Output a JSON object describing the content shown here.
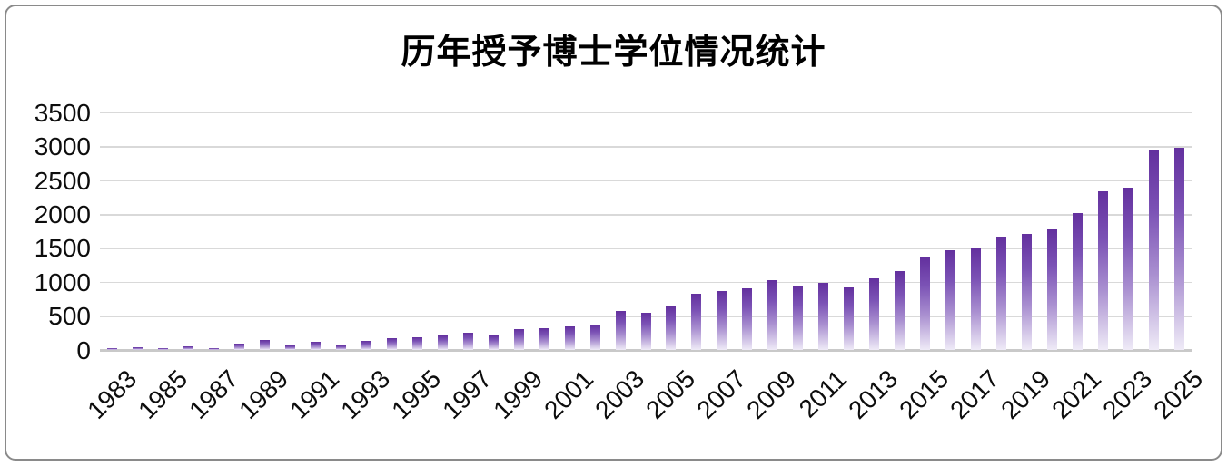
{
  "chart_data": {
    "type": "bar",
    "title": "历年授予博士学位情况统计",
    "xlabel": "",
    "ylabel": "",
    "categories": [
      1983,
      1984,
      1985,
      1986,
      1987,
      1988,
      1989,
      1990,
      1991,
      1992,
      1993,
      1994,
      1995,
      1996,
      1997,
      1998,
      1999,
      2000,
      2001,
      2002,
      2003,
      2004,
      2005,
      2006,
      2007,
      2008,
      2009,
      2010,
      2011,
      2012,
      2013,
      2014,
      2015,
      2016,
      2017,
      2018,
      2019,
      2020,
      2021,
      2022,
      2023,
      2024,
      2025
    ],
    "values": [
      30,
      50,
      35,
      55,
      40,
      95,
      160,
      80,
      130,
      75,
      140,
      180,
      190,
      215,
      255,
      225,
      315,
      330,
      355,
      385,
      580,
      560,
      645,
      840,
      880,
      915,
      1035,
      955,
      990,
      925,
      1060,
      1175,
      1370,
      1480,
      1500,
      1680,
      1715,
      1790,
      2020,
      2350,
      2395,
      2945,
      2985
    ],
    "x_tick_labels": [
      "1983",
      "1985",
      "1987",
      "1989",
      "1991",
      "1993",
      "1995",
      "1997",
      "1999",
      "2001",
      "2003",
      "2005",
      "2007",
      "2009",
      "2011",
      "2013",
      "2015",
      "2017",
      "2019",
      "2021",
      "2023",
      "2025"
    ],
    "y_tick_labels": [
      "0",
      "500",
      "1000",
      "1500",
      "2000",
      "2500",
      "3000",
      "3500"
    ],
    "y_ticks": [
      0,
      500,
      1000,
      1500,
      2000,
      2500,
      3000,
      3500
    ],
    "ylim": [
      0,
      3500
    ],
    "grid": "horizontal",
    "legend": "none",
    "colors": {
      "bar_top": "#63309e",
      "bar_bottom": "#efebf7",
      "gridline": "#d9d9d9",
      "text": "#0d0d0d",
      "frame_border": "#8a8a8a",
      "background": "#ffffff"
    }
  }
}
